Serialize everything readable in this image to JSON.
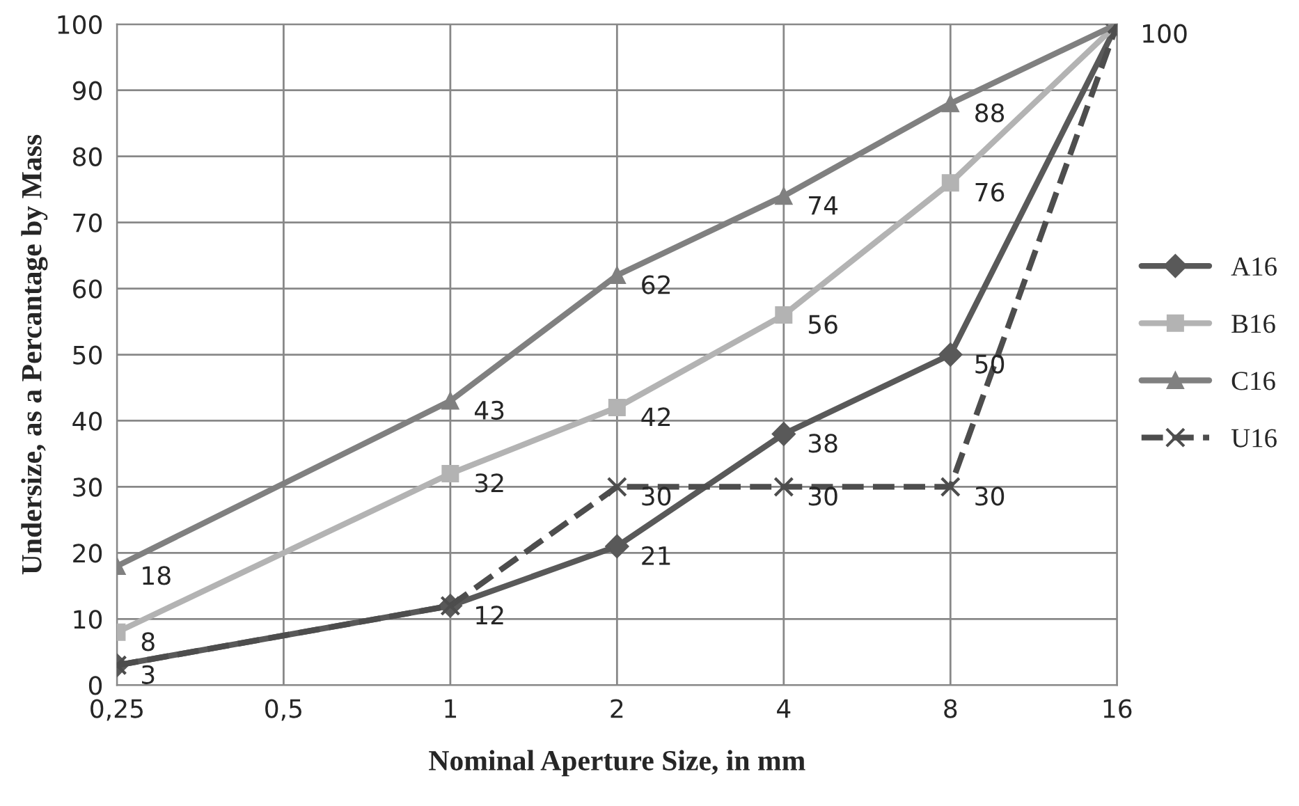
{
  "chart_data": {
    "type": "line",
    "xlabel": "Nominal Aperture Size, in mm",
    "ylabel": "Undersize, as a Percantage by Mass",
    "log": "x",
    "xlim": [
      0.25,
      16
    ],
    "xticks": [
      {
        "value": 0.25,
        "label": "0,25"
      },
      {
        "value": 0.5,
        "label": "0,5"
      },
      1,
      2,
      4,
      8,
      16
    ],
    "ylim": [
      0,
      100
    ],
    "yticks": [
      0,
      10,
      20,
      30,
      40,
      50,
      60,
      70,
      80,
      90,
      100
    ],
    "grid": true,
    "legend": "right",
    "series": [
      {
        "name": "A16",
        "color": "#595959",
        "marker": "diamond",
        "line_style": "solid",
        "x": [
          0.25,
          1,
          2,
          4,
          8,
          16
        ],
        "values": [
          3,
          12,
          21,
          38,
          50,
          100
        ],
        "value_labels": [
          "3",
          "12",
          "21",
          "38",
          "50",
          "100"
        ]
      },
      {
        "name": "B16",
        "color": "#b3b3b3",
        "marker": "square",
        "line_style": "solid",
        "x": [
          0.25,
          1,
          2,
          4,
          8,
          16
        ],
        "values": [
          8,
          32,
          42,
          56,
          76,
          100
        ],
        "value_labels": [
          "8",
          "32",
          "42",
          "56",
          "76",
          null
        ]
      },
      {
        "name": "C16",
        "color": "#808080",
        "marker": "triangle",
        "line_style": "solid",
        "x": [
          0.25,
          1,
          2,
          4,
          8,
          16
        ],
        "values": [
          18,
          43,
          62,
          74,
          88,
          100
        ],
        "value_labels": [
          "18",
          "43",
          "62",
          "74",
          "88",
          null
        ]
      },
      {
        "name": "U16",
        "color": "#4d4d4d",
        "marker": "cross",
        "line_style": "dashed",
        "x": [
          0.25,
          1,
          2,
          4,
          8,
          16
        ],
        "values": [
          3,
          12,
          30,
          30,
          30,
          100
        ],
        "value_labels": [
          null,
          null,
          "30",
          "30",
          "30",
          null
        ]
      }
    ]
  }
}
